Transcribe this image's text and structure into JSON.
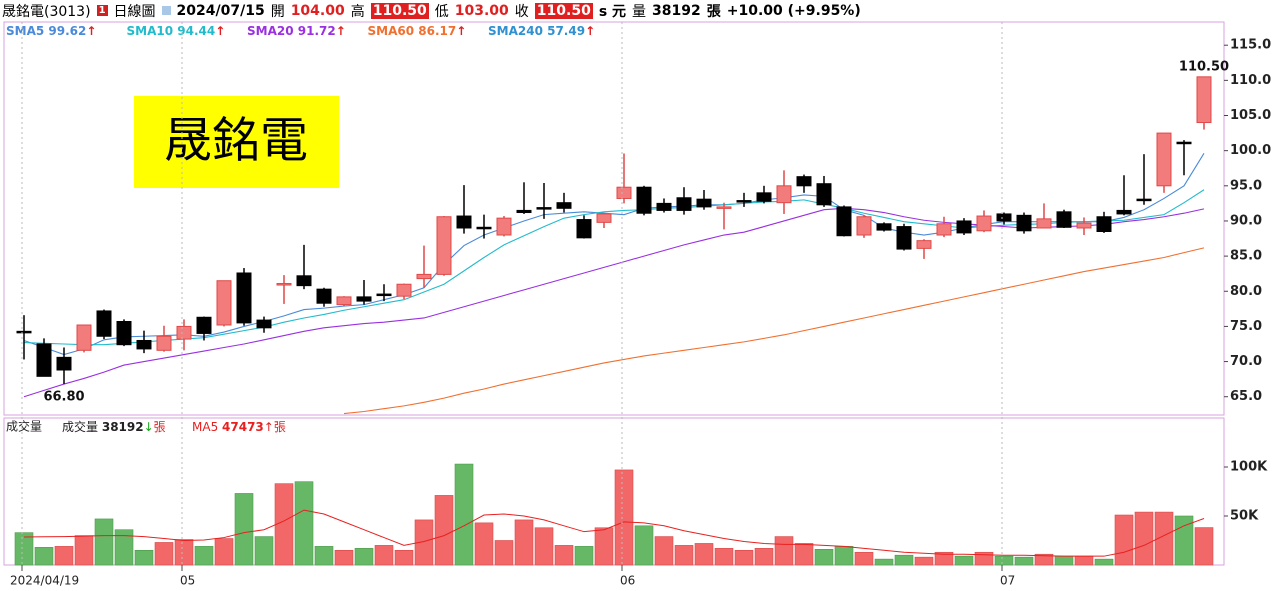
{
  "header": {
    "name": "晟銘電(3013)",
    "period": "日線圖",
    "date": "2024/07/15",
    "open_label": "開",
    "open": "104.00",
    "high_label": "高",
    "high": "110.50",
    "low_label": "低",
    "low": "103.00",
    "close_label": "收",
    "close": "110.50",
    "unit": "s 元",
    "volume_label": "量",
    "volume": "38192",
    "volume_unit": "張",
    "change": "+10.00 (+9.95%)"
  },
  "chart_data": [
    {
      "type": "candlestick",
      "title": "晟銘電",
      "open": [
        74.3,
        72.5,
        70.6,
        71.6,
        77.2,
        75.7,
        73.0,
        71.6,
        73.2,
        76.3,
        75.2,
        82.6,
        75.9,
        80.9,
        82.2,
        80.3,
        78.1,
        79.2,
        79.6,
        79.3,
        81.8,
        82.4,
        90.7,
        89.1,
        88.0,
        91.5,
        91.9,
        92.6,
        90.2,
        89.8,
        93.2,
        94.8,
        92.5,
        93.3,
        93.1,
        91.9,
        92.9,
        94.0,
        92.6,
        96.3,
        95.3,
        92.0,
        88.0,
        89.6,
        89.2,
        86.1,
        88.0,
        90.0,
        88.6,
        91.0,
        90.8,
        89.0,
        91.3,
        89.0,
        90.6,
        91.5,
        93.1,
        95.0,
        101.2,
        104.0
      ],
      "high": [
        76.6,
        73.3,
        72.0,
        75.2,
        77.4,
        76.0,
        74.4,
        75.1,
        76.0,
        76.4,
        81.5,
        83.3,
        76.4,
        82.3,
        86.6,
        80.5,
        79.3,
        81.6,
        81.0,
        81.1,
        86.5,
        90.7,
        95.1,
        90.9,
        90.7,
        95.5,
        95.4,
        94.0,
        90.8,
        91.1,
        99.6,
        95.0,
        93.2,
        94.8,
        94.4,
        92.6,
        94.0,
        95.0,
        97.2,
        96.6,
        96.4,
        92.2,
        90.8,
        89.8,
        89.6,
        87.4,
        90.6,
        90.4,
        91.5,
        91.2,
        91.2,
        92.5,
        91.6,
        90.5,
        91.3,
        96.5,
        99.5,
        102.5,
        101.5,
        110.5
      ],
      "low": [
        70.3,
        67.9,
        66.8,
        71.3,
        73.2,
        72.2,
        71.2,
        71.4,
        71.6,
        73.0,
        75.0,
        75.1,
        74.1,
        78.2,
        80.3,
        77.8,
        77.9,
        78.1,
        78.6,
        78.9,
        80.5,
        82.2,
        88.2,
        87.5,
        87.8,
        91.0,
        90.3,
        91.2,
        87.5,
        89.0,
        92.5,
        90.8,
        91.2,
        90.9,
        91.6,
        88.8,
        92.0,
        92.5,
        91.0,
        94.0,
        92.0,
        87.8,
        87.6,
        88.5,
        85.8,
        84.6,
        87.7,
        88.0,
        88.4,
        89.5,
        88.2,
        89.0,
        89.0,
        88.0,
        88.3,
        90.8,
        92.3,
        94.0,
        96.5,
        103.0
      ],
      "close": [
        74.2,
        67.9,
        68.8,
        75.2,
        73.6,
        72.4,
        71.8,
        73.6,
        75.0,
        74.0,
        81.5,
        75.5,
        74.8,
        81.1,
        80.8,
        78.3,
        79.2,
        78.6,
        79.5,
        81.0,
        82.4,
        90.6,
        89.0,
        89.0,
        90.4,
        91.2,
        91.8,
        91.8,
        87.6,
        91.0,
        94.8,
        91.1,
        91.5,
        91.5,
        92.0,
        92.0,
        92.8,
        92.8,
        95.0,
        95.0,
        92.3,
        87.9,
        90.6,
        88.7,
        86.0,
        87.2,
        89.6,
        88.3,
        90.7,
        90.0,
        88.6,
        90.3,
        89.1,
        89.7,
        88.5,
        91.0,
        93.0,
        102.5,
        101.1,
        110.5
      ],
      "up_color": "#f27c7c",
      "up_border": "#e04848",
      "down_color": "#000000",
      "series": [
        {
          "name": "SMA5",
          "value_label": "99.62",
          "color": "#4a8ad8",
          "values": [
            73.0,
            72.0,
            71.0,
            71.8,
            73.1,
            73.5,
            73.6,
            73.7,
            73.8,
            73.6,
            74.2,
            75.0,
            75.7,
            76.5,
            77.4,
            77.6,
            77.9,
            78.1,
            78.8,
            79.5,
            80.5,
            83.8,
            86.5,
            88.0,
            89.0,
            90.0,
            90.9,
            91.1,
            91.3,
            91.1,
            90.9,
            91.8,
            92.0,
            92.1,
            92.3,
            92.3,
            92.5,
            93.0,
            93.3,
            93.7,
            93.5,
            91.6,
            90.8,
            89.0,
            88.4,
            88.0,
            88.4,
            89.0,
            89.5,
            89.9,
            89.9,
            89.9,
            89.9,
            89.9,
            89.9,
            90.5,
            91.6,
            93.2,
            95.0,
            99.62
          ]
        },
        {
          "name": "SMA10",
          "value_label": "94.44",
          "color": "#22bbcc",
          "values": [
            72.7,
            72.6,
            72.5,
            72.4,
            72.4,
            72.6,
            72.8,
            73.0,
            73.2,
            73.4,
            73.9,
            74.4,
            74.9,
            75.6,
            76.2,
            76.7,
            77.3,
            77.8,
            78.3,
            78.8,
            79.9,
            81.0,
            82.9,
            84.8,
            86.6,
            87.9,
            89.2,
            90.4,
            90.9,
            91.3,
            91.5,
            91.6,
            91.8,
            91.9,
            92.1,
            92.3,
            92.5,
            92.7,
            92.8,
            93.0,
            92.4,
            91.8,
            91.1,
            90.5,
            89.9,
            89.6,
            89.3,
            89.0,
            89.2,
            89.4,
            89.5,
            89.6,
            89.8,
            89.9,
            90.0,
            90.1,
            90.5,
            90.9,
            92.6,
            94.44
          ]
        },
        {
          "name": "SMA20",
          "value_label": "91.72",
          "color": "#9a30e0",
          "values": [
            65.0,
            65.9,
            66.8,
            67.6,
            68.5,
            69.5,
            70.0,
            70.5,
            71.0,
            71.5,
            72.0,
            72.5,
            73.1,
            73.7,
            74.3,
            74.8,
            75.1,
            75.4,
            75.6,
            75.9,
            76.2,
            77.0,
            77.8,
            78.6,
            79.4,
            80.2,
            81.0,
            81.8,
            82.6,
            83.4,
            84.2,
            85.0,
            85.8,
            86.6,
            87.3,
            88.0,
            88.4,
            89.2,
            90.0,
            90.8,
            91.6,
            91.8,
            91.6,
            91.2,
            90.6,
            90.1,
            89.8,
            89.6,
            89.4,
            89.2,
            89.0,
            89.1,
            89.2,
            89.3,
            89.5,
            89.9,
            90.2,
            90.6,
            91.1,
            91.72
          ]
        },
        {
          "name": "SMA60",
          "value_label": "86.17",
          "color": "#f07030",
          "values": [
            null,
            null,
            null,
            null,
            null,
            null,
            null,
            null,
            null,
            null,
            null,
            null,
            null,
            null,
            null,
            null,
            62.6,
            62.9,
            63.3,
            63.7,
            64.2,
            64.8,
            65.5,
            66.1,
            66.8,
            67.4,
            68.0,
            68.6,
            69.2,
            69.8,
            70.3,
            70.8,
            71.2,
            71.6,
            72.0,
            72.4,
            72.8,
            73.3,
            73.8,
            74.4,
            75.0,
            75.6,
            76.2,
            76.8,
            77.4,
            78.0,
            78.6,
            79.2,
            79.8,
            80.4,
            81.0,
            81.6,
            82.2,
            82.8,
            83.3,
            83.8,
            84.3,
            84.8,
            85.5,
            86.17
          ]
        },
        {
          "name": "SMA240",
          "value_label": "57.49",
          "color": "#3090d0"
        }
      ],
      "annotations": [
        {
          "label": "66.80",
          "x": 2,
          "value": 66.8
        },
        {
          "label": "110.50",
          "x": 59,
          "value": 110.5
        }
      ],
      "ylim": [
        62.4,
        118.3
      ],
      "yticks": [
        {
          "value": 65,
          "label": "65.0"
        },
        {
          "value": 70,
          "label": "70.0"
        },
        {
          "value": 75,
          "label": "75.0"
        },
        {
          "value": 80,
          "label": "80.0"
        },
        {
          "value": 85,
          "label": "85.0"
        },
        {
          "value": 90,
          "label": "90.0"
        },
        {
          "value": 95,
          "label": "95.0"
        },
        {
          "value": 100,
          "label": "100.0"
        },
        {
          "value": 105,
          "label": "105.0"
        },
        {
          "value": 110,
          "label": "110.0"
        },
        {
          "value": 115,
          "label": "115.0"
        }
      ]
    },
    {
      "type": "bar",
      "title": "成交量",
      "unit": "張",
      "categories": [
        "2024/04/19",
        null,
        null,
        null,
        null,
        null,
        null,
        null,
        "05",
        null,
        null,
        null,
        null,
        null,
        null,
        null,
        null,
        null,
        null,
        null,
        null,
        null,
        null,
        null,
        null,
        null,
        null,
        null,
        null,
        null,
        "06",
        null,
        null,
        null,
        null,
        null,
        null,
        null,
        null,
        null,
        null,
        null,
        null,
        null,
        null,
        null,
        null,
        null,
        null,
        "07",
        null,
        null,
        null,
        null,
        null,
        null,
        null,
        null,
        null,
        null
      ],
      "up_color": "#f26868",
      "down_color": "#66b866",
      "series": [
        {
          "name": "成交量",
          "value_label": "38192",
          "values": [
            33000,
            18000,
            19000,
            30000,
            47000,
            36000,
            15000,
            23000,
            26000,
            19000,
            27000,
            73000,
            29000,
            83000,
            85000,
            19000,
            15000,
            17000,
            20000,
            15000,
            46000,
            71000,
            103000,
            43000,
            25000,
            46000,
            38000,
            20000,
            19000,
            38000,
            97000,
            40000,
            29000,
            20000,
            22000,
            17000,
            15000,
            17000,
            29000,
            22000,
            16000,
            19000,
            13000,
            6000,
            10000,
            8000,
            13000,
            9000,
            13000,
            9000,
            8000,
            11000,
            9000,
            9000,
            6000,
            51000,
            54000,
            54000,
            50000,
            38192
          ]
        },
        {
          "name": "MA5",
          "value_label": "47473",
          "color": "#e82020",
          "values": [
            28600,
            28800,
            29000,
            29500,
            30000,
            30000,
            29000,
            27000,
            25000,
            25500,
            28000,
            33000,
            36000,
            45000,
            56000,
            52000,
            44000,
            36000,
            28000,
            20000,
            24000,
            30000,
            40000,
            51000,
            52000,
            50000,
            46000,
            40000,
            34000,
            36000,
            44000,
            43000,
            40000,
            35000,
            31000,
            27000,
            24000,
            22000,
            21000,
            21000,
            20000,
            19000,
            17000,
            15000,
            13000,
            12000,
            11000,
            11000,
            10500,
            10000,
            10000,
            9500,
            9000,
            9000,
            9000,
            13000,
            20000,
            30000,
            40000,
            47473
          ]
        }
      ],
      "ylim": [
        0,
        150000
      ],
      "yticks": [
        {
          "value": 50000,
          "label": "50K"
        },
        {
          "value": 100000,
          "label": "100K"
        }
      ]
    }
  ]
}
